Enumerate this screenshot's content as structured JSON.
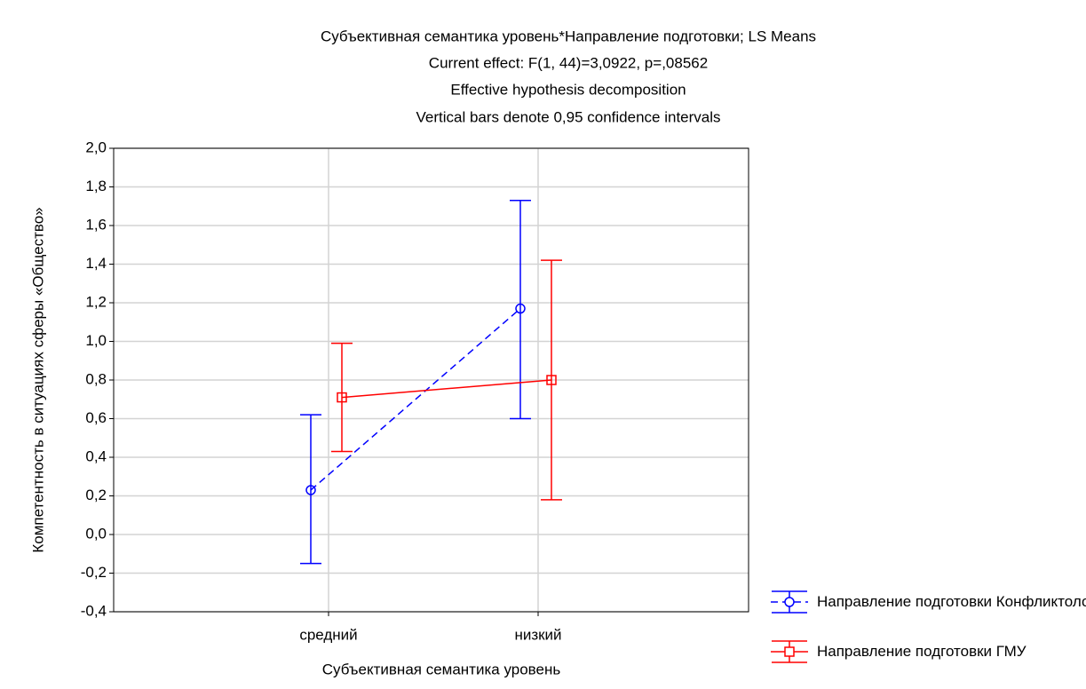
{
  "chart_data": {
    "type": "line",
    "title": "Субъективная семантика уровень*Направление подготовки; LS Means",
    "subtitles": [
      "Current effect: F(1, 44)=3,0922, p=,08562",
      "Effective hypothesis decomposition",
      "Vertical bars denote 0,95 confidence intervals"
    ],
    "x_label": "Субъективная семантика уровень",
    "y_label": "Компетентность в ситуациях сферы «Общество»",
    "categories": [
      "средний",
      "низкий"
    ],
    "series": [
      {
        "name": "Направление подготовки Конфликтологи",
        "color": "#0000ff",
        "line_style": "dashed",
        "marker": "circle",
        "values": [
          0.23,
          1.17
        ],
        "ci_low": [
          -0.15,
          0.6
        ],
        "ci_high": [
          0.62,
          1.73
        ]
      },
      {
        "name": "Направление подготовки ГМУ",
        "color": "#ff0000",
        "line_style": "solid",
        "marker": "square",
        "values": [
          0.71,
          0.8
        ],
        "ci_low": [
          0.43,
          0.18
        ],
        "ci_high": [
          0.99,
          1.42
        ]
      }
    ],
    "ylim": [
      -0.4,
      2.0
    ],
    "yticks": [
      {
        "value": -0.4,
        "label": "-0,4"
      },
      {
        "value": -0.2,
        "label": "-0,2"
      },
      {
        "value": 0,
        "label": "0,0"
      },
      {
        "value": 0.2,
        "label": "0,2"
      },
      {
        "value": 0.4,
        "label": "0,4"
      },
      {
        "value": 0.6,
        "label": "0,6"
      },
      {
        "value": 0.8,
        "label": "0,8"
      },
      {
        "value": 1.0,
        "label": "1,0"
      },
      {
        "value": 1.2,
        "label": "1,2"
      },
      {
        "value": 1.4,
        "label": "1,4"
      },
      {
        "value": 1.6,
        "label": "1,6"
      },
      {
        "value": 1.8,
        "label": "1,8"
      },
      {
        "value": 2.0,
        "label": "2,0"
      }
    ],
    "grid": true
  }
}
